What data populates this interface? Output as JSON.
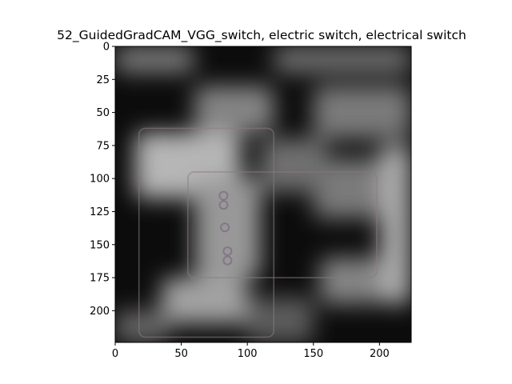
{
  "chart_data": {
    "type": "heatmap",
    "title": "52_GuidedGradCAM_VGG_switch, electric switch, electrical switch",
    "xlabel": "",
    "ylabel": "",
    "xlim": [
      0,
      224
    ],
    "ylim": [
      224,
      0
    ],
    "x_ticks": [
      0,
      50,
      100,
      150,
      200
    ],
    "y_ticks": [
      0,
      25,
      50,
      75,
      100,
      125,
      150,
      175,
      200
    ],
    "grid": false,
    "colormap": "grayscale",
    "colors": {
      "dark": "#0c0c0c",
      "light": "#d4d4d4",
      "outline": "#8a7a86",
      "dot": "#7a6a80"
    },
    "image_regions": [
      {
        "x": [
          15,
          95
        ],
        "y": [
          65,
          115
        ],
        "level": 0.85
      },
      {
        "x": [
          60,
          110
        ],
        "y": [
          100,
          175
        ],
        "level": 0.7
      },
      {
        "x": [
          35,
          100
        ],
        "y": [
          175,
          210
        ],
        "level": 0.75
      },
      {
        "x": [
          150,
          200
        ],
        "y": [
          85,
          130
        ],
        "level": 0.55
      },
      {
        "x": [
          200,
          224
        ],
        "y": [
          75,
          195
        ],
        "level": 0.8
      },
      {
        "x": [
          155,
          200
        ],
        "y": [
          160,
          195
        ],
        "level": 0.6
      },
      {
        "x": [
          0,
          60
        ],
        "y": [
          0,
          20
        ],
        "level": 0.55
      },
      {
        "x": [
          120,
          224
        ],
        "y": [
          0,
          20
        ],
        "level": 0.5
      },
      {
        "x": [
          60,
          120
        ],
        "y": [
          30,
          65
        ],
        "level": 0.6
      },
      {
        "x": [
          150,
          224
        ],
        "y": [
          30,
          70
        ],
        "level": 0.55
      },
      {
        "x": [
          110,
          160
        ],
        "y": [
          70,
          110
        ],
        "level": 0.5
      },
      {
        "x": [
          0,
          40
        ],
        "y": [
          200,
          224
        ],
        "level": 0.45
      },
      {
        "x": [
          100,
          150
        ],
        "y": [
          190,
          224
        ],
        "level": 0.4
      }
    ],
    "outlines": [
      {
        "x": [
          18,
          120
        ],
        "y": [
          62,
          220
        ]
      },
      {
        "x": [
          55,
          198
        ],
        "y": [
          95,
          175
        ]
      }
    ],
    "dots": [
      {
        "x": 82,
        "y": 113
      },
      {
        "x": 82,
        "y": 120
      },
      {
        "x": 83,
        "y": 137
      },
      {
        "x": 85,
        "y": 155
      },
      {
        "x": 85,
        "y": 162
      }
    ]
  }
}
